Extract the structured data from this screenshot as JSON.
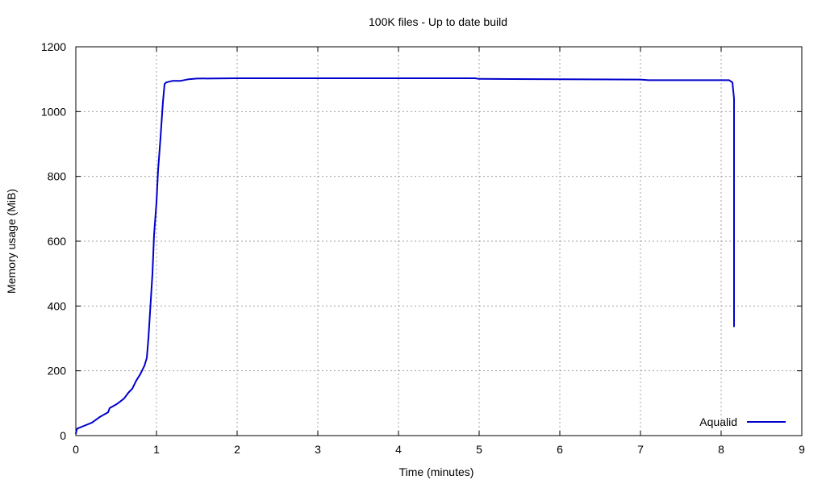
{
  "chart_data": {
    "type": "line",
    "title": "100K files - Up to date build",
    "xlabel": "Time (minutes)",
    "ylabel": "Memory usage (MiB)",
    "xlim": [
      0,
      9
    ],
    "ylim": [
      0,
      1200
    ],
    "xticks": [
      0,
      1,
      2,
      3,
      4,
      5,
      6,
      7,
      8,
      9
    ],
    "yticks": [
      0,
      200,
      400,
      600,
      800,
      1000,
      1200
    ],
    "grid": true,
    "legend_position": "bottom-right",
    "series": [
      {
        "name": "Aqualid",
        "color": "#0000cc",
        "x": [
          0.0,
          0.01,
          0.02,
          0.1,
          0.2,
          0.3,
          0.4,
          0.42,
          0.5,
          0.55,
          0.6,
          0.65,
          0.7,
          0.75,
          0.8,
          0.82,
          0.85,
          0.88,
          0.9,
          0.92,
          0.95,
          0.97,
          1.0,
          1.02,
          1.05,
          1.08,
          1.1,
          1.12,
          1.2,
          1.3,
          1.4,
          1.5,
          2.0,
          3.0,
          4.0,
          4.95,
          5.0,
          6.0,
          7.0,
          7.1,
          8.0,
          8.1,
          8.14,
          8.16,
          8.16
        ],
        "y": [
          5,
          18,
          22,
          30,
          40,
          58,
          72,
          85,
          96,
          105,
          115,
          132,
          145,
          170,
          190,
          200,
          215,
          240,
          300,
          380,
          500,
          620,
          720,
          820,
          920,
          1030,
          1085,
          1090,
          1095,
          1095,
          1100,
          1102,
          1103,
          1103,
          1103,
          1103,
          1101,
          1100,
          1099,
          1097,
          1097,
          1097,
          1090,
          1040,
          335
        ]
      }
    ]
  }
}
